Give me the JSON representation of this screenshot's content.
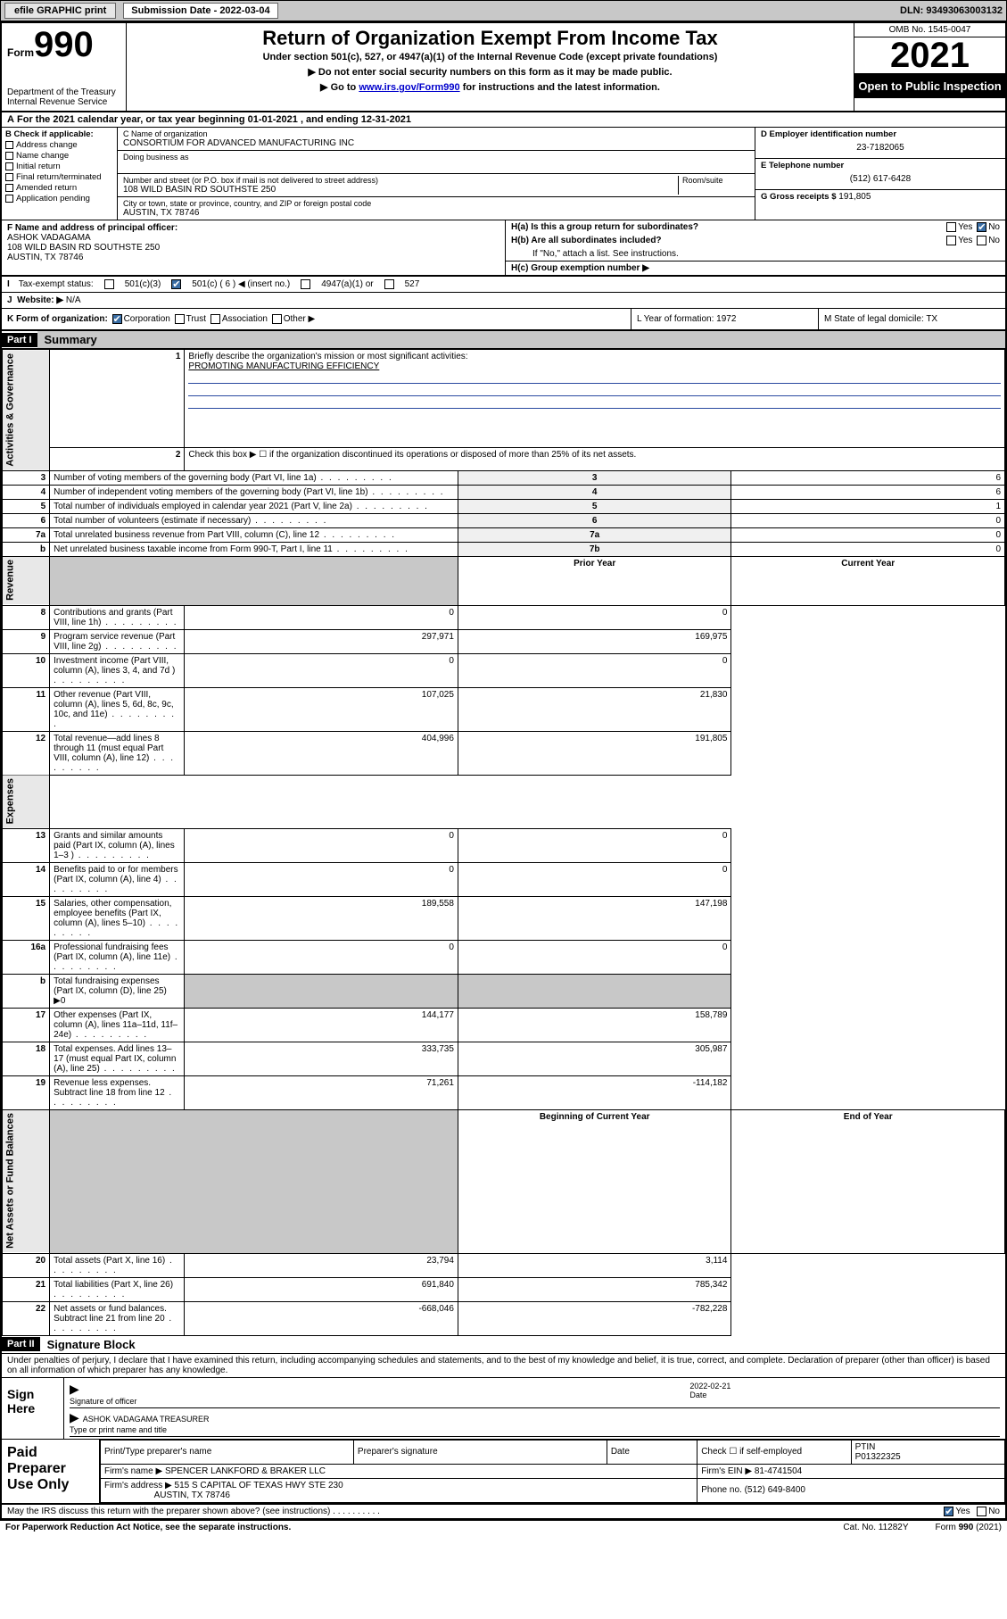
{
  "top": {
    "efile": "efile GRAPHIC print",
    "sub_lbl": "Submission Date - 2022-03-04",
    "dln": "DLN: 93493063003132"
  },
  "hdr": {
    "form": "Form",
    "num": "990",
    "title": "Return of Organization Exempt From Income Tax",
    "sub1": "Under section 501(c), 527, or 4947(a)(1) of the Internal Revenue Code (except private foundations)",
    "sub2": "▶ Do not enter social security numbers on this form as it may be made public.",
    "sub3_pre": "▶ Go to ",
    "sub3_link": "www.irs.gov/Form990",
    "sub3_post": " for instructions and the latest information.",
    "dept": "Department of the Treasury Internal Revenue Service",
    "omb": "OMB No. 1545-0047",
    "year": "2021",
    "open": "Open to Public Inspection"
  },
  "A": "For the 2021 calendar year, or tax year beginning 01-01-2021  , and ending 12-31-2021",
  "B": {
    "hd": "B Check if applicable:",
    "items": [
      "Address change",
      "Name change",
      "Initial return",
      "Final return/terminated",
      "Amended return",
      "Application pending"
    ]
  },
  "C": {
    "name_lbl": "C Name of organization",
    "name": "CONSORTIUM FOR ADVANCED MANUFACTURING INC",
    "dba_lbl": "Doing business as",
    "street_lbl": "Number and street (or P.O. box if mail is not delivered to street address)",
    "room_lbl": "Room/suite",
    "street": "108 WILD BASIN RD SOUTHSTE 250",
    "city_lbl": "City or town, state or province, country, and ZIP or foreign postal code",
    "city": "AUSTIN, TX  78746"
  },
  "D": {
    "lbl": "D Employer identification number",
    "val": "23-7182065"
  },
  "E": {
    "lbl": "E Telephone number",
    "val": "(512) 617-6428"
  },
  "G": {
    "lbl": "G Gross receipts $",
    "val": "191,805"
  },
  "F": {
    "lbl": "F Name and address of principal officer:",
    "name": "ASHOK VADAGAMA",
    "addr1": "108 WILD BASIN RD SOUTHSTE 250",
    "addr2": "AUSTIN, TX  78746"
  },
  "H": {
    "a": "H(a)  Is this a group return for subordinates?",
    "b": "H(b)  Are all subordinates included?",
    "b_note": "If \"No,\" attach a list. See instructions.",
    "c": "H(c)  Group exemption number ▶",
    "yes": "Yes",
    "no": "No"
  },
  "I": {
    "lbl": "Tax-exempt status:",
    "o1": "501(c)(3)",
    "o2": "501(c) ( 6 ) ◀ (insert no.)",
    "o3": "4947(a)(1) or",
    "o4": "527"
  },
  "J": {
    "lbl": "Website: ▶",
    "val": "N/A"
  },
  "K": {
    "lbl": "K Form of organization:",
    "o1": "Corporation",
    "o2": "Trust",
    "o3": "Association",
    "o4": "Other ▶",
    "L": "L Year of formation: 1972",
    "M": "M State of legal domicile: TX"
  },
  "part1": {
    "tag": "Part I",
    "title": "Summary"
  },
  "summary": {
    "side1": "Activities & Governance",
    "side2": "Revenue",
    "side3": "Expenses",
    "side4": "Net Assets or Fund Balances",
    "mission_lbl": "Briefly describe the organization's mission or most significant activities:",
    "mission": "PROMOTING MANUFACTURING EFFICIENCY",
    "r2": "Check this box ▶ ☐  if the organization discontinued its operations or disposed of more than 25% of its net assets.",
    "rows_gov": [
      {
        "n": "3",
        "d": "Number of voting members of the governing body (Part VI, line 1a)",
        "b": "3",
        "v": "6"
      },
      {
        "n": "4",
        "d": "Number of independent voting members of the governing body (Part VI, line 1b)",
        "b": "4",
        "v": "6"
      },
      {
        "n": "5",
        "d": "Total number of individuals employed in calendar year 2021 (Part V, line 2a)",
        "b": "5",
        "v": "1"
      },
      {
        "n": "6",
        "d": "Total number of volunteers (estimate if necessary)",
        "b": "6",
        "v": "0"
      },
      {
        "n": "7a",
        "d": "Total unrelated business revenue from Part VIII, column (C), line 12",
        "b": "7a",
        "v": "0"
      },
      {
        "n": "b",
        "d": "Net unrelated business taxable income from Form 990-T, Part I, line 11",
        "b": "7b",
        "v": "0"
      }
    ],
    "col_py": "Prior Year",
    "col_cy": "Current Year",
    "rows_rev": [
      {
        "n": "8",
        "d": "Contributions and grants (Part VIII, line 1h)",
        "py": "0",
        "cy": "0"
      },
      {
        "n": "9",
        "d": "Program service revenue (Part VIII, line 2g)",
        "py": "297,971",
        "cy": "169,975"
      },
      {
        "n": "10",
        "d": "Investment income (Part VIII, column (A), lines 3, 4, and 7d )",
        "py": "0",
        "cy": "0"
      },
      {
        "n": "11",
        "d": "Other revenue (Part VIII, column (A), lines 5, 6d, 8c, 9c, 10c, and 11e)",
        "py": "107,025",
        "cy": "21,830"
      },
      {
        "n": "12",
        "d": "Total revenue—add lines 8 through 11 (must equal Part VIII, column (A), line 12)",
        "py": "404,996",
        "cy": "191,805"
      }
    ],
    "rows_exp": [
      {
        "n": "13",
        "d": "Grants and similar amounts paid (Part IX, column (A), lines 1–3 )",
        "py": "0",
        "cy": "0"
      },
      {
        "n": "14",
        "d": "Benefits paid to or for members (Part IX, column (A), line 4)",
        "py": "0",
        "cy": "0"
      },
      {
        "n": "15",
        "d": "Salaries, other compensation, employee benefits (Part IX, column (A), lines 5–10)",
        "py": "189,558",
        "cy": "147,198"
      },
      {
        "n": "16a",
        "d": "Professional fundraising fees (Part IX, column (A), line 11e)",
        "py": "0",
        "cy": "0"
      },
      {
        "n": "b",
        "d": "Total fundraising expenses (Part IX, column (D), line 25) ▶0",
        "py": "",
        "cy": "",
        "shade": true
      },
      {
        "n": "17",
        "d": "Other expenses (Part IX, column (A), lines 11a–11d, 11f–24e)",
        "py": "144,177",
        "cy": "158,789"
      },
      {
        "n": "18",
        "d": "Total expenses. Add lines 13–17 (must equal Part IX, column (A), line 25)",
        "py": "333,735",
        "cy": "305,987"
      },
      {
        "n": "19",
        "d": "Revenue less expenses. Subtract line 18 from line 12",
        "py": "71,261",
        "cy": "-114,182"
      }
    ],
    "col_boy": "Beginning of Current Year",
    "col_eoy": "End of Year",
    "rows_net": [
      {
        "n": "20",
        "d": "Total assets (Part X, line 16)",
        "py": "23,794",
        "cy": "3,114"
      },
      {
        "n": "21",
        "d": "Total liabilities (Part X, line 26)",
        "py": "691,840",
        "cy": "785,342"
      },
      {
        "n": "22",
        "d": "Net assets or fund balances. Subtract line 21 from line 20",
        "py": "-668,046",
        "cy": "-782,228"
      }
    ]
  },
  "part2": {
    "tag": "Part II",
    "title": "Signature Block"
  },
  "sig": {
    "decl": "Under penalties of perjury, I declare that I have examined this return, including accompanying schedules and statements, and to the best of my knowledge and belief, it is true, correct, and complete. Declaration of preparer (other than officer) is based on all information of which preparer has any knowledge.",
    "sign_here": "Sign Here",
    "sig_officer": "Signature of officer",
    "date_lbl": "Date",
    "date": "2022-02-21",
    "name": "ASHOK VADAGAMA  TREASURER",
    "name_lbl": "Type or print name and title"
  },
  "prep": {
    "title": "Paid Preparer Use Only",
    "h1": "Print/Type preparer's name",
    "h2": "Preparer's signature",
    "h3": "Date",
    "h4_a": "Check ☐ if self-employed",
    "h4_b": "PTIN",
    "ptin": "P01322325",
    "firm_lbl": "Firm's name   ▶",
    "firm": "SPENCER LANKFORD & BRAKER LLC",
    "ein_lbl": "Firm's EIN ▶",
    "ein": "81-4741504",
    "addr_lbl": "Firm's address ▶",
    "addr1": "515 S CAPITAL OF TEXAS HWY STE 230",
    "addr2": "AUSTIN, TX  78746",
    "phone_lbl": "Phone no.",
    "phone": "(512) 649-8400"
  },
  "may": "May the IRS discuss this return with the preparer shown above? (see instructions)   .   .   .   .   .   .   .   .   .   .",
  "footer": {
    "l": "For Paperwork Reduction Act Notice, see the separate instructions.",
    "c": "Cat. No. 11282Y",
    "r": "Form 990 (2021)"
  }
}
